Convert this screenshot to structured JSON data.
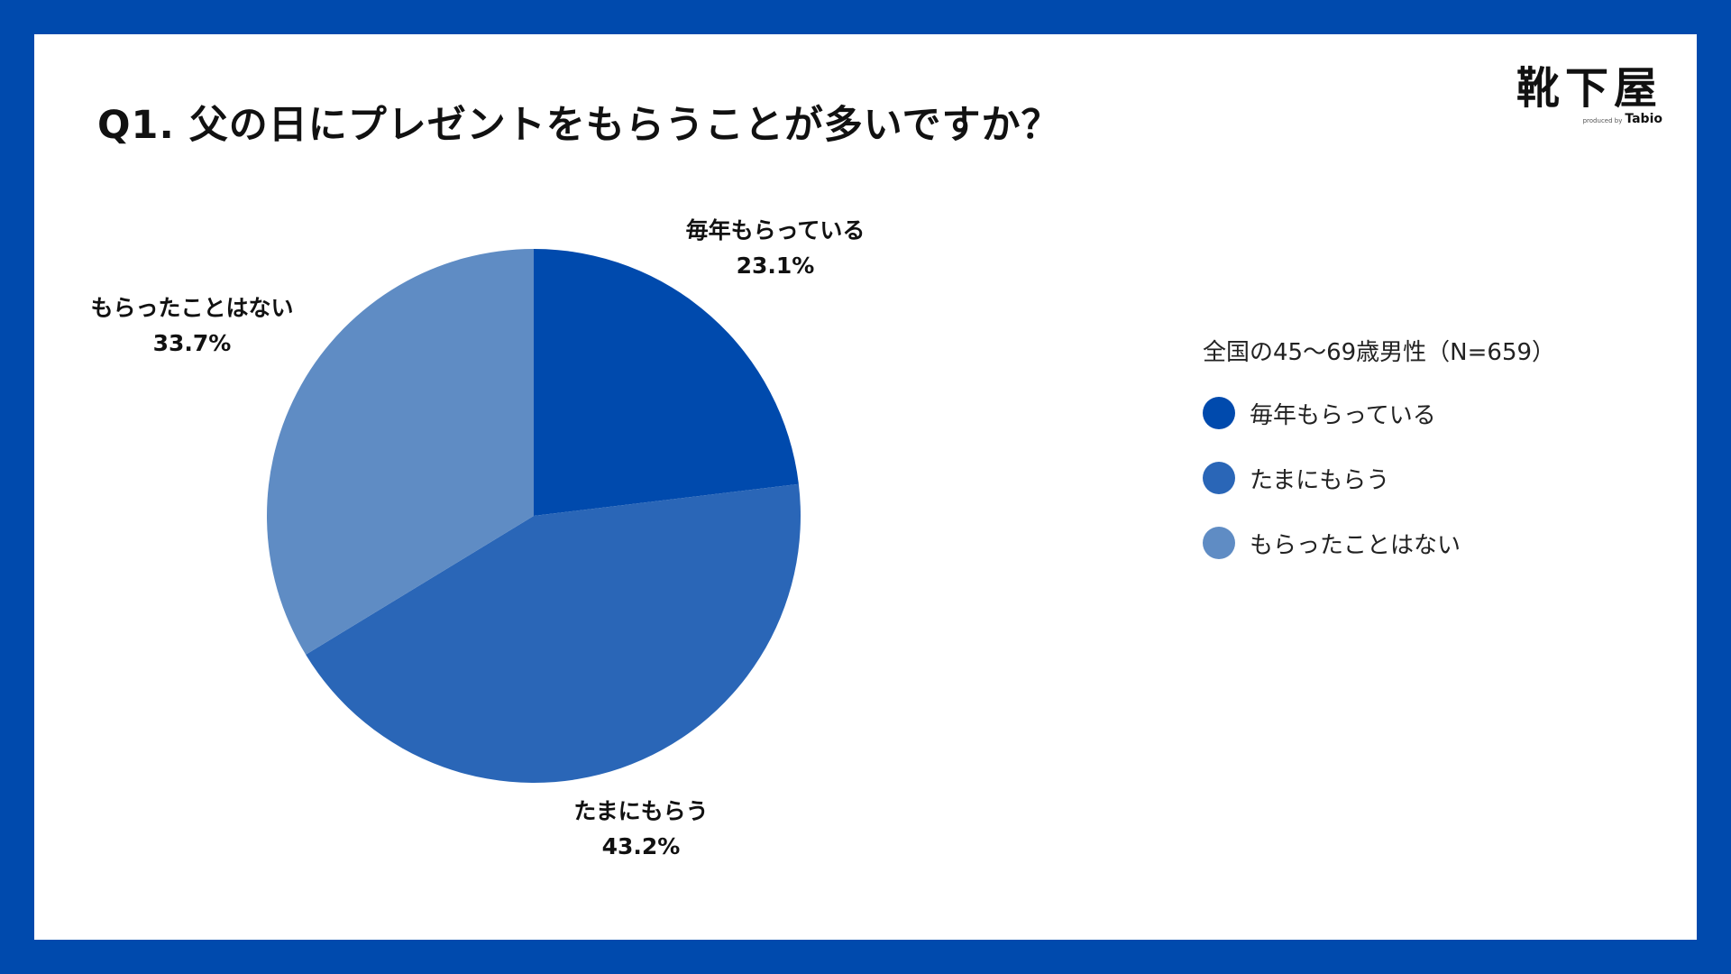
{
  "logo": {
    "main": "靴下屋",
    "produced_by": "produced by",
    "brand": "Tabio"
  },
  "title": "Q1. 父の日にプレゼントをもらうことが多いですか？",
  "legend": {
    "title": "全国の45〜69歳男性（N=659）",
    "items": [
      {
        "label": "毎年もらっている",
        "color": "#004AAD"
      },
      {
        "label": "たまにもらう",
        "color": "#2A66B7"
      },
      {
        "label": "もらったことはない",
        "color": "#5F8CC4"
      }
    ]
  },
  "chart_data": {
    "type": "pie",
    "title": "Q1. 父の日にプレゼントをもらうことが多いですか？",
    "categories": [
      "毎年もらっている",
      "たまにもらう",
      "もらったことはない"
    ],
    "values": [
      23.1,
      43.2,
      33.7
    ],
    "value_labels": [
      "23.1%",
      "43.2%",
      "33.7%"
    ],
    "colors": [
      "#004AAD",
      "#2A66B7",
      "#5F8CC4"
    ],
    "start": "12 o'clock, clockwise",
    "legend_position": "right"
  }
}
